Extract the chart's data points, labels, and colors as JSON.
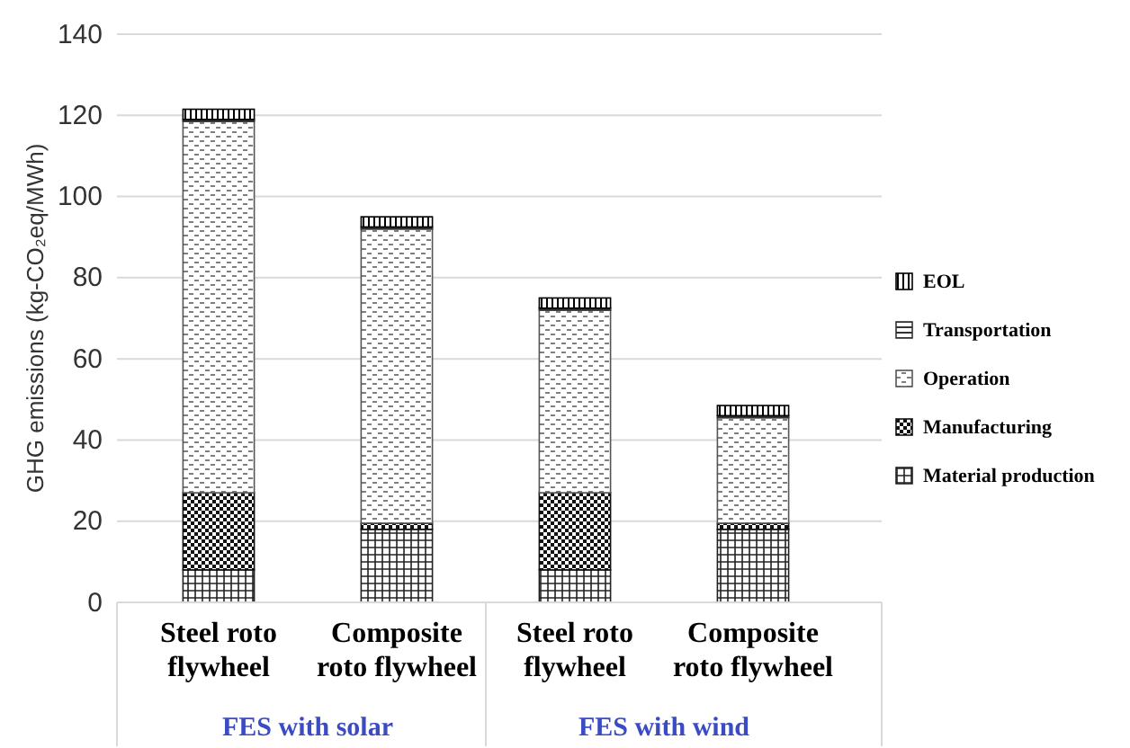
{
  "chart_data": {
    "type": "bar",
    "stacked": true,
    "ylabel": "GHG emissions (kg-CO₂eq/MWh)",
    "categories": [
      "Steel roto flywheel",
      "Composite roto flywheel",
      "Steel roto flywheel",
      "Composite roto flywheel"
    ],
    "series": [
      {
        "name": "Material production",
        "color": "#222222",
        "values": [
          8,
          18,
          8,
          18
        ]
      },
      {
        "name": "Manufacturing",
        "color": "#111111",
        "values": [
          19,
          1.5,
          19,
          1.5
        ]
      },
      {
        "name": "Operation",
        "color": "#555555",
        "values": [
          91.5,
          72.5,
          45,
          26
        ]
      },
      {
        "name": "Transportation",
        "color": "#333333",
        "values": [
          0.5,
          0.5,
          0.5,
          0.5
        ]
      },
      {
        "name": "EOL",
        "color": "#000000",
        "values": [
          2.5,
          2.5,
          2.5,
          2.5
        ]
      }
    ],
    "ylim": [
      0,
      140
    ],
    "yticks": [
      0,
      20,
      40,
      60,
      80,
      100,
      120,
      140
    ],
    "grid": "y",
    "legend": "right",
    "annotations": [
      "FES with solar",
      "FES with wind"
    ]
  }
}
